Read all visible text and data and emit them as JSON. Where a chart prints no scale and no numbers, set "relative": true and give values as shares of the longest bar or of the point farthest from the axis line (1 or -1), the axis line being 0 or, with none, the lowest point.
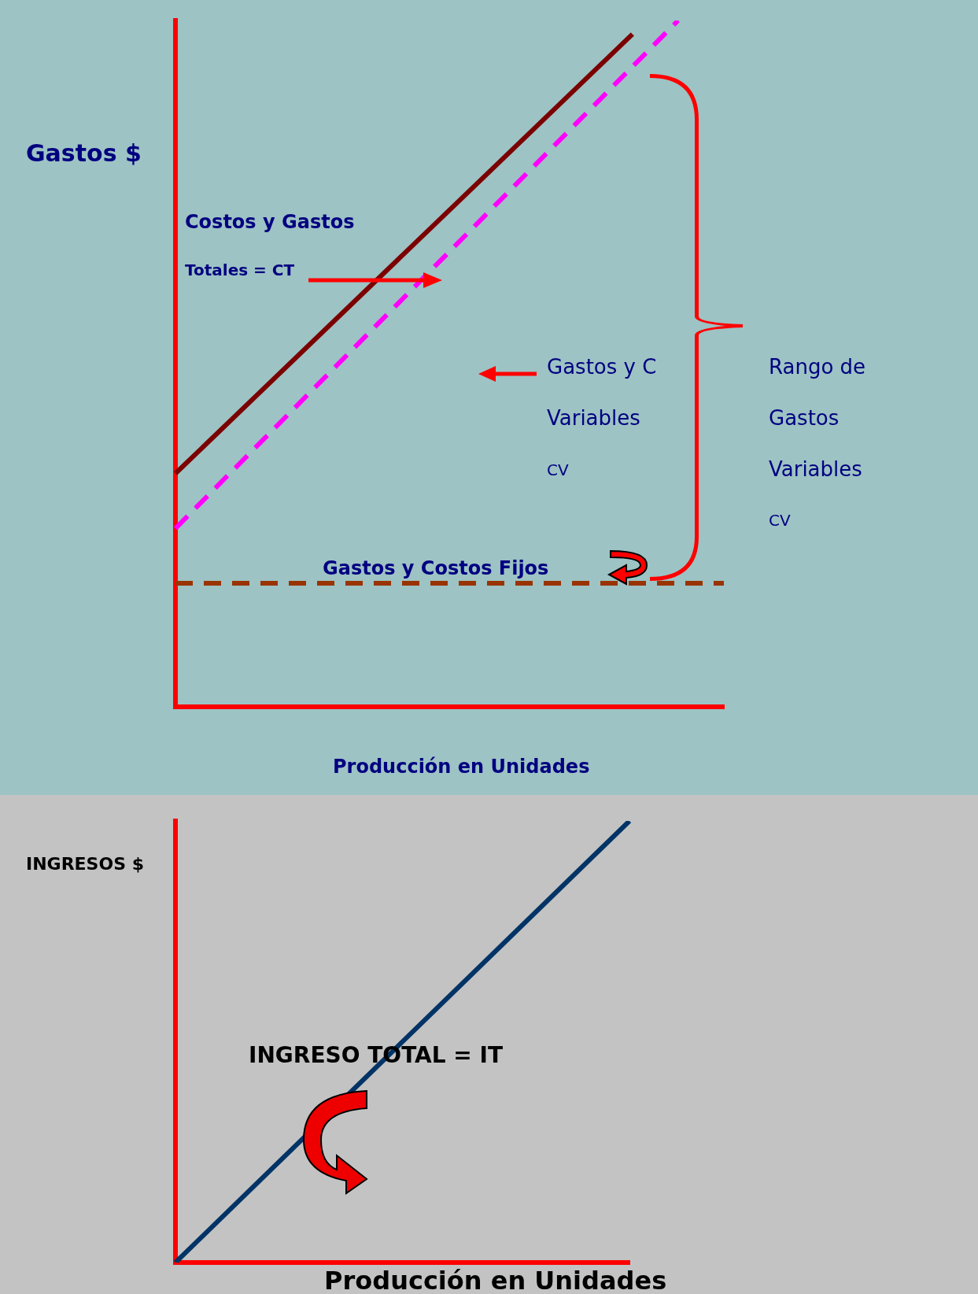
{
  "chart_data": [
    {
      "type": "line",
      "relative": true,
      "ylabel": "Gastos $",
      "xlabel": "Producción en Unidades",
      "categories": [
        null,
        null,
        null,
        null,
        null,
        null,
        null,
        null,
        null,
        null,
        null,
        null,
        null
      ],
      "legend": false,
      "grid": false,
      "marker": "none",
      "series": [
        {
          "color": "#7b0000",
          "line_style": "solid",
          "values": [
            0.34,
            null,
            null,
            null,
            null,
            null,
            null,
            null,
            null,
            null,
            0.98,
            null,
            null
          ]
        },
        {
          "color": "#ff00ff",
          "line_style": "dashed",
          "values": [
            0.26,
            null,
            null,
            null,
            null,
            null,
            null,
            null,
            null,
            null,
            null,
            1,
            null
          ]
        },
        {
          "color": "#993300",
          "line_style": "dashed",
          "values": [
            0.18,
            null,
            null,
            null,
            null,
            null,
            null,
            null,
            null,
            null,
            null,
            null,
            0.18
          ]
        }
      ],
      "annotations": [
        "Costos y Gastos",
        "Totales = CT",
        "Gastos y C",
        "Variables",
        "CV",
        "Gastos y Costos Fijos",
        "Rango de",
        "Gastos",
        "Variables",
        "CV"
      ]
    },
    {
      "type": "line",
      "relative": true,
      "ylabel": "INGRESOS $",
      "xlabel": "Producción en Unidades",
      "categories": [
        null,
        null,
        null,
        null,
        null,
        null,
        null,
        null,
        null,
        null,
        null
      ],
      "legend": false,
      "grid": false,
      "marker": "none",
      "series": [
        {
          "color": "#003366",
          "line_style": "solid",
          "values": [
            0,
            null,
            null,
            null,
            null,
            null,
            null,
            null,
            null,
            null,
            1
          ]
        }
      ],
      "annotations": [
        "INGRESO TOTAL = IT"
      ]
    }
  ]
}
